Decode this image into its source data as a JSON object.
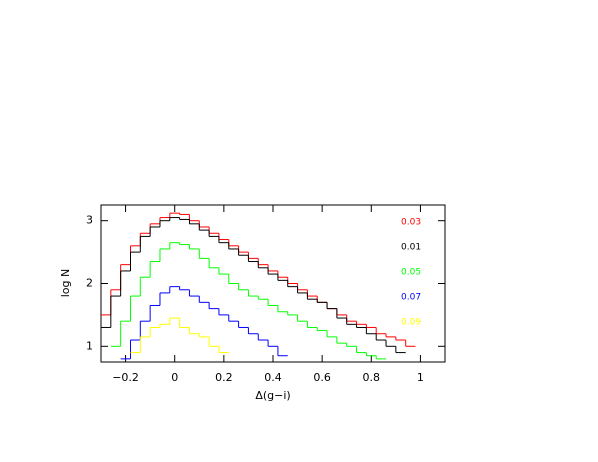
{
  "chart_data": {
    "type": "histogram",
    "x_label": "Δ(g−i)",
    "y_label": "log N",
    "xlim": [
      -0.3,
      1.1
    ],
    "ylim": [
      0.75,
      3.25
    ],
    "xticks": [
      {
        "value": -0.2,
        "label": "−0.2"
      },
      0,
      0.2,
      0.4,
      0.6,
      0.8,
      1
    ],
    "yticks": [
      1,
      2,
      3
    ],
    "bins": [
      -0.3,
      -0.26,
      -0.22,
      -0.18,
      -0.14,
      -0.1,
      -0.06,
      -0.02,
      0.02,
      0.06,
      0.1,
      0.14,
      0.18,
      0.22,
      0.26,
      0.3,
      0.34,
      0.38,
      0.42,
      0.46,
      0.5,
      0.54,
      0.58,
      0.62,
      0.66,
      0.7,
      0.74,
      0.78,
      0.82,
      0.86,
      0.9,
      0.94,
      0.98,
      1.02
    ],
    "series": [
      {
        "name": "0.03",
        "color": "#ff0000",
        "values": [
          1.5,
          1.9,
          2.3,
          2.6,
          2.8,
          2.95,
          3.05,
          3.12,
          3.1,
          3.0,
          2.9,
          2.8,
          2.7,
          2.6,
          2.5,
          2.4,
          2.3,
          2.2,
          2.1,
          2.0,
          1.9,
          1.8,
          1.7,
          1.6,
          1.5,
          1.4,
          1.35,
          1.3,
          1.2,
          1.15,
          1.1,
          1.0,
          null
        ]
      },
      {
        "name": "0.01",
        "color": "#000000",
        "values": [
          1.3,
          1.8,
          2.2,
          2.5,
          2.75,
          2.9,
          3.0,
          3.05,
          3.02,
          2.95,
          2.85,
          2.75,
          2.65,
          2.55,
          2.45,
          2.35,
          2.25,
          2.15,
          2.05,
          1.95,
          1.85,
          1.75,
          1.7,
          1.6,
          1.45,
          1.35,
          1.3,
          1.2,
          1.1,
          1.0,
          0.9,
          null,
          null
        ]
      },
      {
        "name": "0.05",
        "color": "#00ff00",
        "values": [
          null,
          1.0,
          1.4,
          1.8,
          2.1,
          2.35,
          2.55,
          2.65,
          2.62,
          2.55,
          2.4,
          2.25,
          2.15,
          2.0,
          1.9,
          1.8,
          1.75,
          1.65,
          1.55,
          1.5,
          1.4,
          1.3,
          1.25,
          1.15,
          1.05,
          1.0,
          0.9,
          0.85,
          0.8,
          null,
          null,
          null,
          null
        ]
      },
      {
        "name": "0.07",
        "color": "#0000ff",
        "values": [
          null,
          null,
          0.8,
          1.1,
          1.4,
          1.65,
          1.85,
          1.95,
          1.9,
          1.8,
          1.7,
          1.6,
          1.5,
          1.4,
          1.3,
          1.2,
          1.1,
          1.0,
          0.85,
          null,
          null,
          null,
          null,
          null,
          null,
          null,
          null,
          null,
          null,
          null,
          null,
          null,
          null
        ]
      },
      {
        "name": "0.09",
        "color": "#ffff00",
        "values": [
          null,
          null,
          null,
          0.9,
          1.15,
          1.3,
          1.35,
          1.45,
          1.3,
          1.2,
          1.15,
          1.0,
          0.9,
          null,
          null,
          null,
          null,
          null,
          null,
          null,
          null,
          null,
          null,
          null,
          null,
          null,
          null,
          null,
          null,
          null,
          null,
          null,
          null
        ]
      }
    ]
  }
}
